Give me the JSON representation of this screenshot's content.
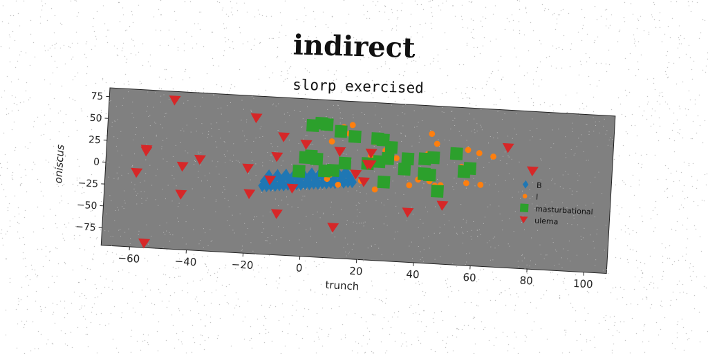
{
  "suptitle": "indirect",
  "chart_data": {
    "type": "scatter",
    "title": "slorp exercised",
    "xlabel": "trunch",
    "ylabel": "oniscus",
    "xlim": [
      -70,
      108
    ],
    "ylim": [
      -95,
      85
    ],
    "xticks": [
      -60,
      -40,
      -20,
      0,
      20,
      40,
      60,
      80,
      100
    ],
    "yticks": [
      75,
      50,
      25,
      0,
      -25,
      -50,
      -75
    ],
    "grid": false,
    "legend_position": "right",
    "plot_background": "#808080",
    "series": [
      {
        "name": "B",
        "marker": "diamond",
        "color": "#1f77b4",
        "x": [
          -14.5,
          -13.0,
          -11.5,
          -10.0,
          -8.5,
          -7.0,
          -5.5,
          -4.0,
          -2.5,
          -1.0,
          0.5,
          2.0,
          3.5,
          5.0,
          6.5,
          8.0,
          9.5,
          11.0,
          12.5,
          14.0,
          15.5,
          17.0,
          -14.0,
          -11.0,
          -8.0,
          -5.0,
          -2.0,
          1.0,
          4.0,
          7.0,
          10.0,
          13.0,
          16.0,
          -12.5,
          -9.5,
          -6.5,
          -3.5,
          -0.5,
          2.5,
          5.5,
          8.5,
          11.5,
          14.5
        ],
        "y": [
          -17,
          -17,
          -16,
          -16,
          -15,
          -15,
          -14,
          -14,
          -13,
          -13,
          -12,
          -12,
          -11,
          -11,
          -10,
          -10,
          -9,
          -9,
          -8,
          -8,
          -7,
          -7,
          -12,
          -11,
          -10,
          -9,
          -8,
          -7,
          -6,
          -5,
          -4,
          -3,
          -2,
          -5,
          -4,
          -3,
          -2,
          -1,
          0,
          1,
          2,
          3,
          4
        ]
      },
      {
        "name": "l",
        "marker": "circle",
        "color": "#ff7f0e",
        "x": [
          13,
          16,
          15,
          9,
          24,
          28,
          30,
          23,
          32,
          10,
          6,
          9,
          8,
          20,
          40,
          45,
          44,
          46,
          48,
          44,
          57,
          61,
          66,
          46,
          43,
          55,
          57,
          62,
          37,
          25,
          12
        ],
        "y": [
          55,
          58,
          48,
          38,
          40,
          31,
          20,
          24,
          23,
          7,
          6,
          0,
          -5,
          -5,
          0,
          2,
          -1,
          -6,
          -5,
          53,
          37,
          34,
          31,
          42,
          30,
          17,
          -1,
          -2,
          -7,
          -14,
          -11
        ]
      },
      {
        "name": "masturbational",
        "marker": "square",
        "color": "#2ca02c",
        "x": [
          2,
          5,
          7,
          12,
          17,
          25,
          27,
          30,
          36,
          42,
          45,
          53,
          56,
          58,
          35,
          42,
          44,
          47,
          29,
          26,
          22,
          14,
          10,
          7,
          4,
          2,
          0,
          -2,
          28
        ],
        "y": [
          55,
          58,
          57,
          50,
          45,
          44,
          43,
          35,
          23,
          24,
          26,
          32,
          12,
          16,
          11,
          7,
          6,
          -12,
          22,
          18,
          15,
          14,
          5,
          4,
          17,
          20,
          18,
          2,
          -5
        ]
      },
      {
        "name": "ulema",
        "marker": "triangle_down",
        "color": "#d62728",
        "x": [
          -47,
          -18,
          -8,
          -56,
          -59,
          -43,
          -37,
          -20,
          -10,
          -56,
          -43,
          -19,
          -9,
          -12,
          -55,
          -4,
          0,
          23,
          22,
          18,
          21,
          11,
          37,
          49,
          71,
          80,
          0,
          12,
          23
        ],
        "y": [
          75,
          60,
          40,
          17,
          -10,
          0,
          9,
          2,
          17,
          15,
          -32,
          -27,
          -48,
          -10,
          -90,
          -18,
          33,
          27,
          14,
          2,
          -6,
          -60,
          -38,
          -28,
          42,
          17,
          33,
          27,
          14
        ]
      }
    ]
  }
}
